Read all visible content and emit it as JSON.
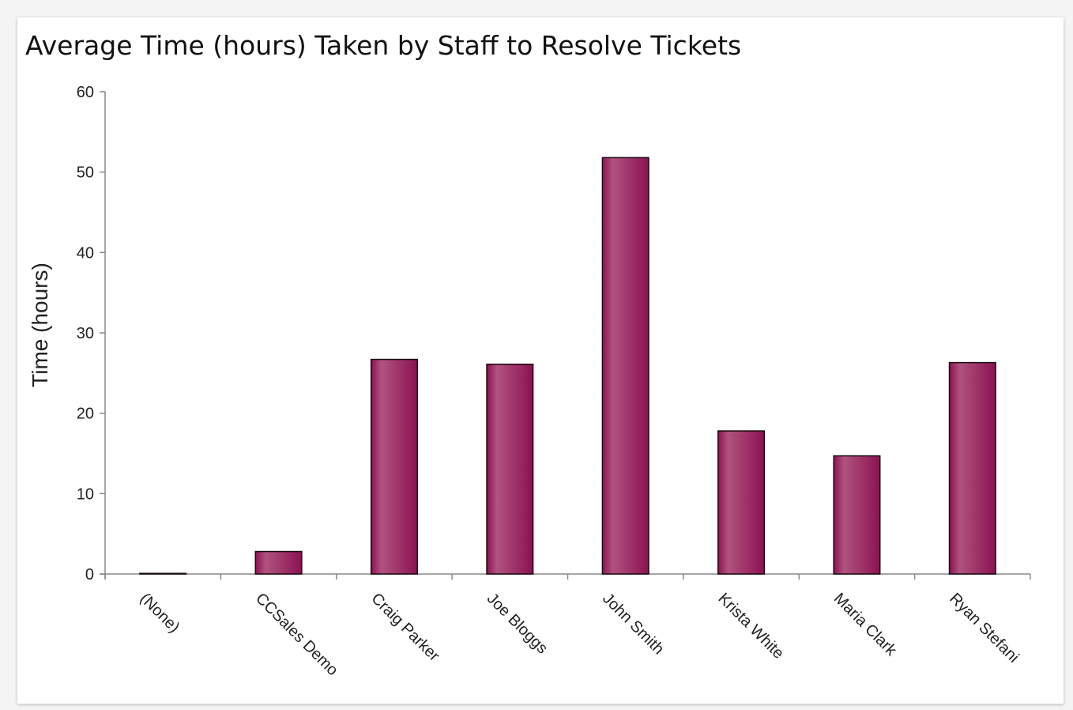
{
  "chart_data": {
    "type": "bar",
    "title": "Average Time (hours) Taken by Staff to Resolve Tickets",
    "xlabel": "",
    "ylabel": "Time (hours)",
    "ylim": [
      0,
      60
    ],
    "yticks": [
      0,
      10,
      20,
      30,
      40,
      50,
      60
    ],
    "categories": [
      "(None)",
      "CCSales Demo",
      "Craig Parker",
      "Joe Bloggs",
      "John Smith",
      "Krista White",
      "Maria Clark",
      "Ryan Stefani"
    ],
    "values": [
      0,
      2.8,
      26.7,
      26.1,
      51.8,
      17.8,
      14.7,
      26.3
    ],
    "grid": false,
    "legend": "none",
    "bar_color": "#8b1252",
    "bar_highlight": "#b0537f"
  }
}
